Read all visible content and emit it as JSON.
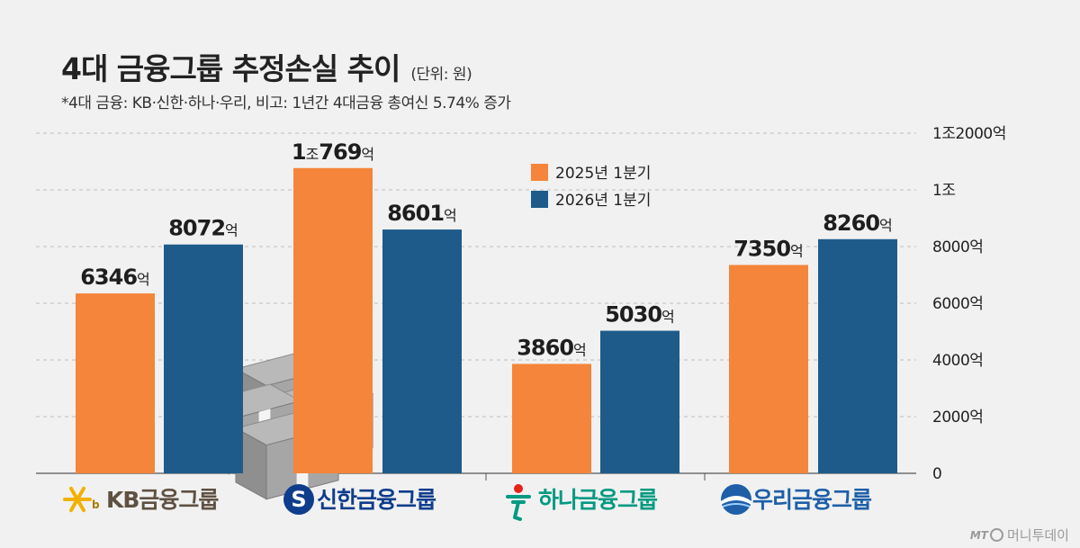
{
  "header": {
    "title": "4대 금융그룹 추정손실 추이",
    "unit": "(단위: 원)",
    "subtitle": "*4대 금융: KB·신한·하나·우리, 비고: 1년간 4대금융 총여신 5.74% 증가"
  },
  "colors": {
    "series_2025": "#f5853a",
    "series_2026": "#1e5b8a",
    "grid": "#bdbdbd",
    "background": "#f1f1f1",
    "kb": "#5f5142",
    "shinhan": "#0f3d8c",
    "hana": "#009a82",
    "woori": "#1e5fa8"
  },
  "brands": [
    {
      "name": "KB금융그룹",
      "icon": "kb-star-icon"
    },
    {
      "name": "신한금융그룹",
      "icon": "shinhan-s-icon"
    },
    {
      "name": "하나금융그룹",
      "icon": "hana-person-icon"
    },
    {
      "name": "우리금융그룹",
      "icon": "woori-globe-icon"
    }
  ],
  "watermark": {
    "prefix": "MT",
    "text": "머니투데이"
  },
  "chart_data": {
    "type": "bar",
    "categories": [
      "KB금융그룹",
      "신한금융그룹",
      "하나금융그룹",
      "우리금융그룹"
    ],
    "series": [
      {
        "name": "2025년 1분기",
        "values": [
          6346,
          10769,
          3860,
          7350
        ],
        "labels": [
          {
            "num": "6346",
            "unit": "억"
          },
          {
            "num": "1",
            "mid": "조",
            "num2": "769",
            "unit": "억"
          },
          {
            "num": "3860",
            "unit": "억"
          },
          {
            "num": "7350",
            "unit": "억"
          }
        ]
      },
      {
        "name": "2026년 1분기",
        "values": [
          8072,
          8601,
          5030,
          8260
        ],
        "labels": [
          {
            "num": "8072",
            "unit": "억"
          },
          {
            "num": "8601",
            "unit": "억"
          },
          {
            "num": "5030",
            "unit": "억"
          },
          {
            "num": "8260",
            "unit": "억"
          }
        ]
      }
    ],
    "ylim": [
      0,
      12000
    ],
    "yticks": [
      0,
      2000,
      4000,
      6000,
      8000,
      10000,
      12000
    ],
    "ytick_labels": [
      "0",
      "2000억",
      "4000억",
      "6000억",
      "8000억",
      "1조",
      "1조2000억"
    ],
    "ylabel_position": "right",
    "grid": true,
    "legend_position": "top-center"
  }
}
